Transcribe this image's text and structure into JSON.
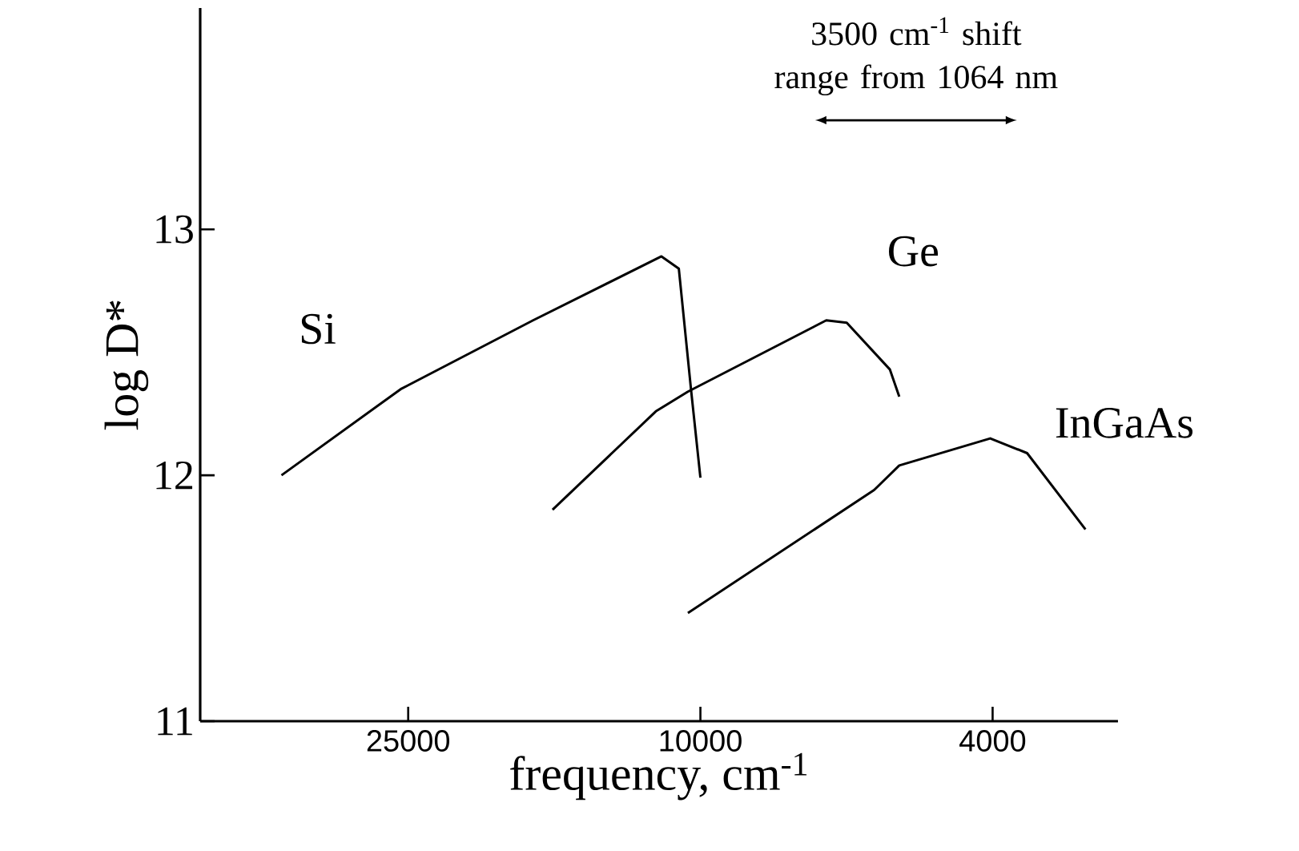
{
  "chart_data": {
    "type": "line",
    "xlabel": "frequency, cm$^{-1}$",
    "ylabel": "log D*",
    "log": "x",
    "xlim": [
      48000,
      2700
    ],
    "ylim": [
      11,
      13.9
    ],
    "xticks": [
      25000,
      10000,
      4000
    ],
    "yticks": [
      11,
      12,
      13
    ],
    "grid": false,
    "legend": false,
    "marker": "none",
    "line_style": "solid",
    "annotations": [
      "3500 cm$^{-1}$ shift range from 1064 nm"
    ],
    "series": [
      {
        "name": "Si",
        "color": "#000000",
        "x": [
          37200,
          25600,
          16900,
          11300,
          10700,
          10300,
          10000
        ],
        "values": [
          12.0,
          12.35,
          12.63,
          12.89,
          12.84,
          12.35,
          11.99
        ]
      },
      {
        "name": "Ge",
        "color": "#000000",
        "x": [
          15900,
          11500,
          10400,
          6740,
          6320,
          5520,
          5360
        ],
        "values": [
          11.86,
          12.26,
          12.34,
          12.63,
          12.62,
          12.43,
          12.32
        ]
      },
      {
        "name": "InGaAs",
        "color": "#000000",
        "x": [
          10400,
          5800,
          5360,
          4030,
          3590,
          2990
        ],
        "values": [
          11.44,
          11.94,
          12.04,
          12.15,
          12.09,
          11.78
        ]
      }
    ]
  }
}
